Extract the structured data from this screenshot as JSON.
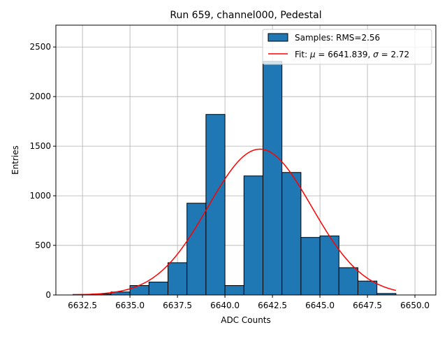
{
  "chart_data": {
    "type": "bar",
    "title": "Run 659, channel000, Pedestal",
    "xlabel": "ADC Counts",
    "ylabel": "Entries",
    "xlim": [
      6631.1,
      6651.1
    ],
    "ylim": [
      0,
      2720
    ],
    "grid": true,
    "x_ticks": [
      6632.5,
      6635.0,
      6637.5,
      6640.0,
      6642.5,
      6645.0,
      6647.5,
      6650.0
    ],
    "x_tick_labels": [
      "6632.5",
      "6635.0",
      "6637.5",
      "6640.0",
      "6642.5",
      "6645.0",
      "6647.5",
      "6650.0"
    ],
    "y_ticks": [
      0,
      500,
      1000,
      1500,
      2000,
      2500
    ],
    "y_tick_labels": [
      "0",
      "500",
      "1000",
      "1500",
      "2000",
      "2500"
    ],
    "histogram": {
      "name": "Samples: RMS=2.56",
      "color": "#1f77b4",
      "edge_color": "#000000",
      "bin_width": 1,
      "bin_left_edges": [
        6632,
        6633,
        6634,
        6635,
        6636,
        6637,
        6638,
        6639,
        6640,
        6641,
        6642,
        6643,
        6644,
        6645,
        6646,
        6647,
        6648,
        6649
      ],
      "counts": [
        5,
        10,
        30,
        95,
        130,
        325,
        925,
        1820,
        95,
        1200,
        2355,
        1235,
        580,
        595,
        275,
        140,
        15,
        0
      ]
    },
    "fit": {
      "name": "Fit: μ = 6641.839, σ = 2.72",
      "legend_prefix": "Fit: ",
      "mu_symbol": "μ",
      "mu_text": " = 6641.839, ",
      "sigma_symbol": "σ",
      "sigma_text": " = 2.72",
      "color": "#ff0000",
      "mu": 6641.839,
      "sigma": 2.72,
      "amplitude": 1470,
      "x_range": [
        6632,
        6649
      ]
    },
    "legend_position": "top-right"
  }
}
